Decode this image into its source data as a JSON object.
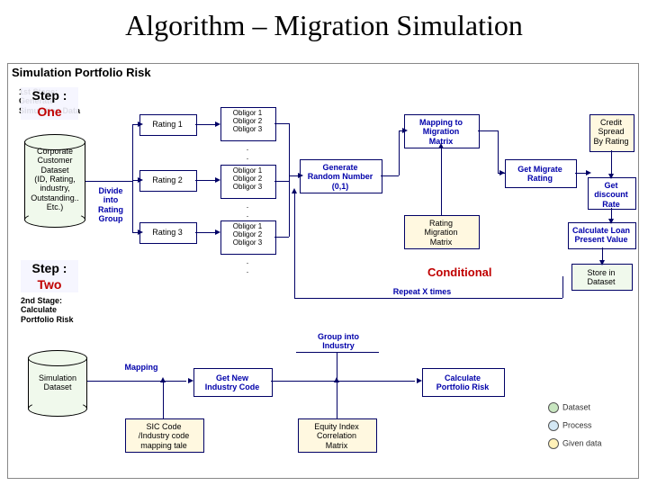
{
  "title": "Algorithm – Migration Simulation",
  "panel_title": "Simulation Portfolio Risk",
  "steps": {
    "one": {
      "l1": "Step :",
      "l2": "One"
    },
    "two": {
      "l1": "Step :",
      "l2": "Two"
    }
  },
  "conditional": "Conditional",
  "stage1_label": "1st Stage:\nGenerate\nSimulation Data",
  "db1": "Corporate\nCustomer\nDataset\n(ID, Rating,\nindustry,\nOutstanding..\nEtc.)",
  "divide": "Divide\ninto\nRating\nGroup",
  "rating_boxes": [
    "Rating 1",
    "Rating 2",
    "Rating 3"
  ],
  "obligor_group": "Obligor 1\nObligor 2\nObligor 3",
  "dots": ".\n.",
  "gen_rand": "Generate\nRandom Number\n(0,1)",
  "map_matrix": "Mapping to\nMigration\nMatrix",
  "get_migrate": "Get Migrate\nRating",
  "migration_matrix": "Rating\nMigration\nMatrix",
  "credit_spread": "Credit\nSpread\nBy Rating",
  "get_discount": "Get\ndiscount\nRate",
  "calc_pv": "Calculate Loan\nPresent Value",
  "store_ds": "Store in\nDataset",
  "repeat": "Repeat  X times",
  "stage2_label": "2nd Stage:\nCalculate\nPortfolio Risk",
  "sim_ds": "Simulation\nDataset",
  "mapping": "Mapping",
  "get_ind": "Get New\nIndustry Code",
  "sic_map": "SIC Code\n/Industry code\nmapping tale",
  "group_ind": "Group into\nIndustry",
  "equity_corr": "Equity Index\nCorrelation\nMatrix",
  "calc_risk": "Calculate\nPortfolio Risk",
  "legend": [
    "Dataset",
    "Process",
    "Given data"
  ],
  "legend_colors": [
    "#c8e6c0",
    "#d4e8f5",
    "#fff1b8"
  ],
  "colors": {
    "border": "#000066",
    "blue_text": "#0000aa",
    "red": "#c00000"
  }
}
